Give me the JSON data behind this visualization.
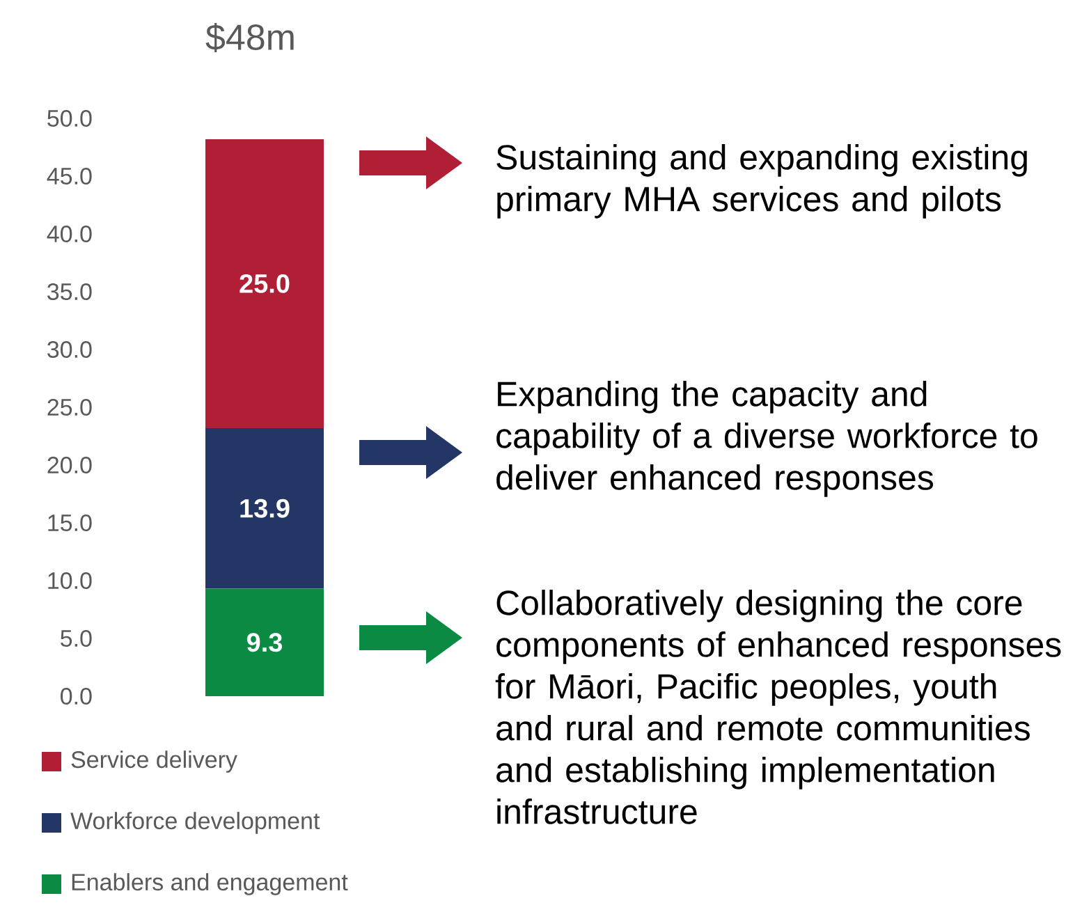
{
  "chart_data": {
    "type": "bar",
    "title": "$48m",
    "categories": [
      null
    ],
    "stacked": true,
    "series": [
      {
        "name": "Enablers and engagement",
        "color": "#0a8a43",
        "values": [
          9.3
        ],
        "value_labels": [
          "9.3"
        ]
      },
      {
        "name": "Workforce development",
        "color": "#243665",
        "values": [
          13.9
        ],
        "value_labels": [
          "13.9"
        ]
      },
      {
        "name": "Service delivery",
        "color": "#b01f35",
        "values": [
          25.0
        ],
        "value_labels": [
          "25.0"
        ]
      }
    ],
    "ylim": [
      0,
      50
    ],
    "yticks": [
      {
        "value": 0,
        "label": "0.0"
      },
      {
        "value": 5,
        "label": "5.0"
      },
      {
        "value": 10,
        "label": "10.0"
      },
      {
        "value": 15,
        "label": "15.0"
      },
      {
        "value": 20,
        "label": "20.0"
      },
      {
        "value": 25,
        "label": "25.0"
      },
      {
        "value": 30,
        "label": "30.0"
      },
      {
        "value": 35,
        "label": "35.0"
      },
      {
        "value": 40,
        "label": "40.0"
      },
      {
        "value": 45,
        "label": "45.0"
      },
      {
        "value": 50,
        "label": "50.0"
      }
    ],
    "legend": "bottom",
    "annotations": [
      "Sustaining and expanding existing primary MHA services and pilots",
      "Expanding the capacity and capability of a diverse workforce to deliver enhanced responses",
      "Collaboratively designing the core components of enhanced responses for Māori, Pacific peoples, youth and rural and remote communities and establishing implementation infrastructure"
    ]
  }
}
